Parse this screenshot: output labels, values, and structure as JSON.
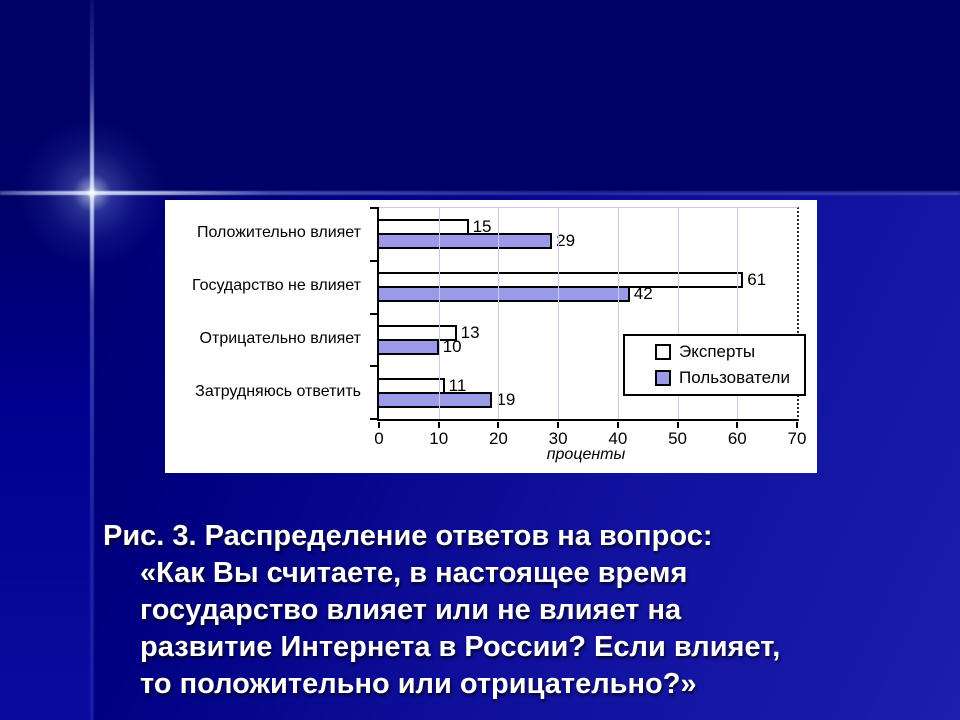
{
  "slide": {
    "caption_lines": [
      "Рис. 3. Распределение ответов на вопрос:",
      "«Как Вы считаете, в настоящее время",
      "государство влияет или не влияет на",
      "развитие Интернета в России? Если влияет,",
      "то положительно или отрицательно?»"
    ]
  },
  "chart_data": {
    "type": "bar",
    "orientation": "horizontal",
    "categories": [
      "Положительно влияет",
      "Государство не влияет",
      "Отрицательно влияет",
      "Затрудняюсь ответить"
    ],
    "series": [
      {
        "name": "Эксперты",
        "color": "#ffffff",
        "values": [
          15,
          61,
          13,
          11
        ]
      },
      {
        "name": "Пользователи",
        "color": "#9a9ae8",
        "values": [
          29,
          42,
          10,
          19
        ]
      }
    ],
    "xlabel": "проценты",
    "x_ticks": [
      0,
      10,
      20,
      30,
      40,
      50,
      60,
      70
    ],
    "xlim": [
      0,
      70
    ],
    "grid": true,
    "legend_position": "inside-right",
    "colors": {
      "plot_background": "#ffffff",
      "gridline": "#c9c9ee",
      "axis": "#000000",
      "slide_background_top": "#000066",
      "slide_background_bottom": "#1d1dae"
    }
  }
}
